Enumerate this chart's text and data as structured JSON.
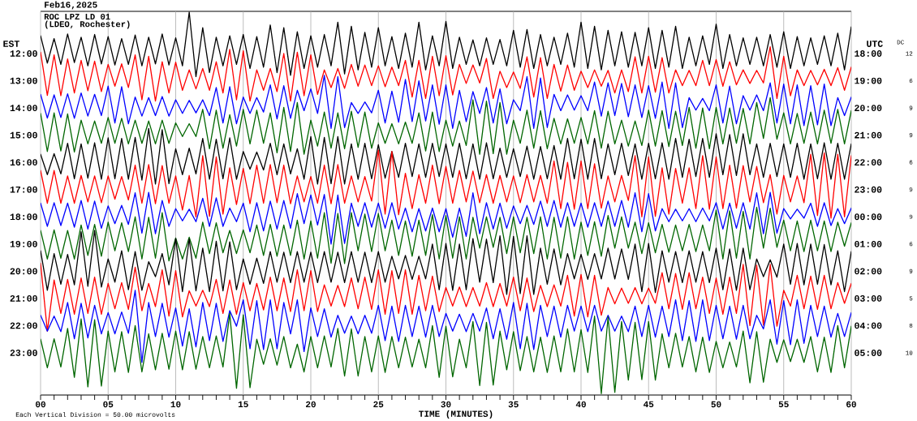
{
  "chart_data": {
    "type": "line",
    "title": "Feb16,2025",
    "subtitle": "ROC LPZ LD 01",
    "annotations": [
      "(LDEO, Rochester)",
      "Each Vertical Division = 50.00 microvolts",
      "DC",
      "12",
      "6",
      "9",
      "9",
      "6",
      "9",
      "9",
      "6",
      "9",
      "5",
      "8",
      "10"
    ],
    "xlabel": "TIME (MINUTES)",
    "ylabel": "EST",
    "y2label": "UTC",
    "x": [
      0,
      0.5,
      1,
      1.5,
      2,
      2.5,
      3,
      3.5,
      4,
      4.5,
      5,
      5.5,
      6,
      6.5,
      7,
      7.5,
      8,
      8.5,
      9,
      9.5,
      10,
      10.5,
      11,
      11.5,
      12,
      12.5,
      13,
      13.5,
      14,
      14.5,
      15,
      15.5,
      16,
      16.5,
      17,
      17.5,
      18,
      18.5,
      19,
      19.5,
      20,
      20.5,
      21,
      21.5,
      22,
      22.5,
      23,
      23.5,
      24,
      24.5,
      25,
      25.5,
      26,
      26.5,
      27,
      27.5,
      28,
      28.5,
      29,
      29.5,
      30,
      30.5,
      31,
      31.5,
      32,
      32.5,
      33,
      33.5,
      34,
      34.5,
      35,
      35.5,
      36,
      36.5,
      37,
      37.5,
      38,
      38.5,
      39,
      39.5,
      40,
      40.5,
      41,
      41.5,
      42,
      42.5,
      43,
      43.5,
      44,
      44.5,
      45,
      45.5,
      46,
      46.5,
      47,
      47.5,
      48,
      48.5,
      49,
      49.5,
      50,
      50.5,
      51,
      51.5,
      52,
      52.5,
      53,
      53.5,
      54,
      54.5,
      55,
      55.5,
      56,
      56.5,
      57,
      57.5,
      58,
      58.5,
      59,
      59.5,
      60
    ],
    "series": [
      {
        "color": "#000000",
        "values": [
          11.35,
          12.35,
          11.45,
          12.4,
          11.28,
          12.33,
          11.4,
          12.45,
          11.3,
          12.38,
          11.38,
          12.42,
          11.45,
          12.4,
          11.32,
          12.45,
          11.4,
          12.38,
          11.28,
          12.42,
          11.42,
          12.45,
          10.48,
          12.85,
          11.05,
          12.7,
          11.4,
          12.45,
          11.35,
          12.4,
          11.3,
          12.55,
          11.38,
          12.5,
          10.95,
          12.7,
          11.05,
          12.8,
          11.2,
          12.55,
          11.35,
          12.5,
          11.3,
          12.45,
          10.85,
          12.75,
          11.0,
          12.6,
          11.22,
          12.5,
          11.05,
          12.45,
          11.38,
          12.55,
          11.25,
          12.5,
          10.85,
          12.6,
          11.35,
          12.45,
          10.82,
          12.55,
          11.4,
          12.4,
          11.5,
          12.45,
          11.42,
          12.4,
          11.48,
          12.45,
          11.15,
          12.5,
          11.12,
          12.55,
          11.3,
          12.45,
          11.4,
          12.4,
          11.25,
          12.5,
          10.85,
          12.55,
          11.0,
          12.6,
          11.15,
          12.45,
          11.2,
          12.5,
          11.22,
          12.45,
          11.05,
          12.55,
          11.15,
          12.5,
          11.0,
          12.55,
          11.4,
          12.45,
          11.35,
          12.4,
          10.92,
          12.55,
          11.3,
          12.45,
          11.42,
          12.4,
          11.4,
          12.45,
          11.3,
          12.5,
          11.2,
          12.55,
          11.38,
          12.45,
          11.42,
          12.4,
          11.35,
          12.45,
          11.25,
          12.6,
          11.02
        ]
      },
      {
        "color": "#ff0000",
        "values": [
          11.95,
          13.54,
          12.05,
          13.55,
          12.2,
          13.45,
          12.25,
          13.37,
          12.28,
          13.4,
          12.4,
          13.2,
          12.38,
          13.25,
          12.05,
          13.7,
          12.1,
          13.75,
          12.3,
          13.45,
          12.32,
          13.35,
          12.6,
          13.3,
          12.55,
          13.35,
          12.3,
          13.45,
          11.85,
          13.7,
          11.9,
          13.75,
          12.6,
          13.35,
          12.55,
          13.4,
          12.0,
          13.75,
          11.95,
          13.55,
          12.05,
          13.5,
          12.6,
          13.25,
          12.55,
          13.28,
          12.4,
          13.2,
          12.42,
          13.18,
          12.45,
          13.22,
          12.5,
          13.18,
          12.25,
          13.6,
          12.25,
          13.65,
          12.1,
          13.55,
          12.08,
          13.52,
          12.4,
          13.1,
          12.42,
          13.08,
          12.18,
          13.65,
          12.65,
          13.25,
          12.68,
          13.28,
          12.12,
          13.6,
          12.15,
          13.65,
          12.4,
          13.38,
          12.42,
          13.35,
          12.65,
          13.25,
          12.6,
          13.2,
          12.62,
          13.45,
          12.6,
          13.4,
          12.12,
          13.45,
          12.1,
          13.42,
          12.15,
          13.45,
          12.6,
          13.18,
          12.62,
          13.18,
          12.25,
          13.18,
          12.22,
          13.2,
          12.3,
          13.15,
          12.6,
          13.1,
          12.62,
          13.08,
          11.75,
          13.65,
          12.1,
          13.55,
          12.6,
          13.18,
          12.62,
          13.15,
          12.58,
          13.18,
          12.52,
          13.35,
          12.5
        ]
      },
      {
        "color": "#0000ff",
        "values": [
          13.5,
          14.37,
          13.52,
          14.35,
          13.48,
          14.38,
          13.45,
          14.3,
          13.5,
          14.28,
          13.2,
          14.55,
          13.22,
          14.58,
          13.6,
          14.3,
          13.62,
          14.28,
          13.58,
          14.3,
          13.7,
          14.2,
          13.72,
          14.18,
          13.7,
          14.28,
          13.25,
          14.55,
          13.22,
          14.58,
          13.6,
          14.2,
          13.62,
          14.15,
          13.15,
          14.4,
          13.18,
          14.38,
          13.35,
          14.1,
          13.3,
          14.2,
          12.8,
          14.75,
          12.85,
          14.72,
          13.8,
          14.2,
          13.78,
          14.18,
          13.35,
          14.55,
          13.38,
          14.52,
          12.95,
          14.5,
          13.0,
          14.48,
          13.15,
          14.6,
          13.15,
          14.75,
          13.35,
          14.5,
          13.4,
          14.2,
          13.25,
          14.55,
          13.3,
          14.58,
          13.7,
          14.1,
          12.85,
          14.75,
          12.9,
          14.72,
          13.5,
          14.1,
          13.52,
          14.08,
          13.55,
          14.1,
          13.05,
          14.3,
          13.08,
          14.28,
          13.1,
          14.32,
          13.15,
          14.35,
          13.18,
          14.38,
          13.05,
          14.75,
          13.08,
          14.72,
          13.62,
          14.08,
          13.65,
          14.1,
          13.15,
          14.55,
          13.2,
          14.58,
          13.55,
          14.08,
          13.52,
          14.1,
          13.08,
          14.55,
          13.12,
          14.58,
          13.15,
          14.65,
          13.18,
          14.62,
          13.12,
          14.65,
          13.62,
          14.28,
          13.6
        ]
      },
      {
        "color": "#006600",
        "values": [
          14.2,
          15.6,
          14.18,
          15.58,
          14.22,
          15.62,
          14.45,
          15.32,
          14.48,
          15.3,
          14.35,
          15.3,
          14.38,
          15.32,
          14.45,
          15.3,
          14.48,
          15.32,
          14.45,
          15.3,
          14.55,
          15.05,
          14.58,
          15.05,
          14.05,
          15.5,
          14.08,
          15.48,
          14.25,
          15.4,
          14.05,
          15.32,
          14.08,
          15.3,
          14.18,
          15.65,
          13.98,
          15.6,
          13.8,
          15.7,
          14.45,
          15.4,
          14.15,
          15.48,
          14.18,
          15.5,
          14.12,
          15.45,
          14.15,
          15.48,
          14.55,
          15.3,
          14.58,
          15.32,
          14.52,
          15.3,
          14.18,
          15.58,
          14.15,
          15.6,
          14.45,
          15.4,
          14.48,
          15.38,
          13.7,
          15.7,
          13.75,
          15.68,
          13.8,
          15.7,
          14.45,
          15.3,
          14.08,
          15.48,
          14.1,
          15.5,
          14.38,
          15.32,
          14.4,
          15.3,
          14.35,
          15.32,
          14.1,
          15.48,
          14.12,
          15.32,
          14.45,
          15.4,
          14.48,
          15.38,
          14.08,
          15.4,
          14.1,
          15.42,
          14.12,
          15.38,
          13.98,
          15.48,
          14.0,
          15.5,
          13.98,
          15.32,
          14.0,
          15.3,
          14.02,
          15.32,
          13.8,
          15.12,
          13.62,
          15.15,
          14.18,
          15.32,
          14.2,
          15.3,
          14.15,
          15.32,
          14.08,
          15.3,
          14.05,
          15.32,
          14.1
        ]
      },
      {
        "color": "#000000",
        "values": [
          15.7,
          16.45,
          15.68,
          16.42,
          15.3,
          16.6,
          15.32,
          16.58,
          15.28,
          16.62,
          15.1,
          16.6,
          15.12,
          16.62,
          15.08,
          16.65,
          14.75,
          16.8,
          14.8,
          16.78,
          15.5,
          16.45,
          15.48,
          16.42,
          15.12,
          16.62,
          15.15,
          16.6,
          15.1,
          16.62,
          15.6,
          16.25,
          15.62,
          16.28,
          15.3,
          16.45,
          15.32,
          16.42,
          15.5,
          16.62,
          15.05,
          16.8,
          15.08,
          16.78,
          15.05,
          16.8,
          15.32,
          16.62,
          15.3,
          16.6,
          15.35,
          16.58,
          15.6,
          16.55,
          15.3,
          16.52,
          15.32,
          16.55,
          15.3,
          16.52,
          15.32,
          16.55,
          15.3,
          16.6,
          15.32,
          16.62,
          15.28,
          16.6,
          15.48,
          16.55,
          15.5,
          16.52,
          15.4,
          16.62,
          15.42,
          16.6,
          15.38,
          16.62,
          15.12,
          16.6,
          15.15,
          16.62,
          15.12,
          16.6,
          15.32,
          16.45,
          15.3,
          16.48,
          15.32,
          16.62,
          15.3,
          16.6,
          15.28,
          16.62,
          15.12,
          16.55,
          15.15,
          16.52,
          15.12,
          16.55,
          14.95,
          16.45,
          14.98,
          16.48,
          14.95,
          16.45,
          15.32,
          16.55,
          15.3,
          16.52,
          15.32,
          16.55,
          15.3,
          16.62,
          15.32,
          16.6,
          15.28,
          16.62,
          15.3,
          16.62,
          15.32
        ]
      },
      {
        "color": "#ff0000",
        "values": [
          16.3,
          17.5,
          16.3,
          17.5,
          16.5,
          17.5,
          16.48,
          17.45,
          16.5,
          17.48,
          16.5,
          17.35,
          16.52,
          17.38,
          16.1,
          17.5,
          16.08,
          17.52,
          16.12,
          17.5,
          16.5,
          17.75,
          16.48,
          18.0,
          15.75,
          17.98,
          15.8,
          17.9,
          16.2,
          17.55,
          16.22,
          17.52,
          16.1,
          17.5,
          16.08,
          17.48,
          16.1,
          17.52,
          16.5,
          17.45,
          16.52,
          17.5,
          16.1,
          17.52,
          16.08,
          17.5,
          16.5,
          17.45,
          16.52,
          17.42,
          15.55,
          17.9,
          15.6,
          17.92,
          16.4,
          17.7,
          16.45,
          17.5,
          16.1,
          17.52,
          16.15,
          17.5,
          16.3,
          17.45,
          16.32,
          17.48,
          16.45,
          17.5,
          16.48,
          17.45,
          16.5,
          17.48,
          16.45,
          17.45,
          16.48,
          17.5,
          15.95,
          17.7,
          16.0,
          17.72,
          15.95,
          17.7,
          16.05,
          17.68,
          16.5,
          17.45,
          16.48,
          17.4,
          15.75,
          18.0,
          15.8,
          17.98,
          16.2,
          17.9,
          16.22,
          17.5,
          16.2,
          17.7,
          15.75,
          17.72,
          15.8,
          17.7,
          16.1,
          17.68,
          16.12,
          17.45,
          16.15,
          17.48,
          16.45,
          17.9,
          16.48,
          17.45,
          16.5,
          17.48,
          15.7,
          17.95,
          15.65,
          18.05,
          15.7,
          18.0,
          15.75
        ]
      },
      {
        "color": "#0000ff",
        "values": [
          17.5,
          18.35,
          17.48,
          18.32,
          17.5,
          18.38,
          17.4,
          18.45,
          17.42,
          18.42,
          17.6,
          18.25,
          17.58,
          18.28,
          17.12,
          18.6,
          17.1,
          18.62,
          17.4,
          18.35,
          17.7,
          18.15,
          17.72,
          18.18,
          17.32,
          18.35,
          17.3,
          18.35,
          17.68,
          18.18,
          17.5,
          18.55,
          17.48,
          18.52,
          17.42,
          18.45,
          17.4,
          18.42,
          17.15,
          18.25,
          17.2,
          18.3,
          17.18,
          19.0,
          17.2,
          18.98,
          17.5,
          18.35,
          17.48,
          18.38,
          17.5,
          18.42,
          17.48,
          18.45,
          17.68,
          18.55,
          17.7,
          18.52,
          17.68,
          18.55,
          17.7,
          18.75,
          17.68,
          18.72,
          17.12,
          18.62,
          17.48,
          18.45,
          17.5,
          18.42,
          17.6,
          18.25,
          17.58,
          18.28,
          17.42,
          18.35,
          17.4,
          18.38,
          17.48,
          18.35,
          17.5,
          18.38,
          17.48,
          18.35,
          17.42,
          18.35,
          17.4,
          18.38,
          17.12,
          18.55,
          17.15,
          18.52,
          17.7,
          18.18,
          17.72,
          18.15,
          17.7,
          18.18,
          17.68,
          18.15,
          17.48,
          18.45,
          17.5,
          18.42,
          17.48,
          18.45,
          17.12,
          18.62,
          17.1,
          18.6,
          17.7,
          18.08,
          17.72,
          18.05,
          17.5,
          18.35,
          17.48,
          18.32,
          17.7,
          18.25,
          17.68
        ]
      },
      {
        "color": "#006600",
        "values": [
          18.5,
          19.55,
          18.48,
          19.52,
          18.5,
          19.55,
          18.3,
          19.42,
          18.28,
          19.45,
          18.2,
          19.25,
          18.22,
          19.28,
          18.0,
          19.55,
          18.02,
          19.52,
          17.85,
          19.62,
          18.78,
          19.55,
          18.75,
          19.52,
          18.2,
          19.35,
          18.22,
          19.32,
          18.5,
          19.35,
          18.48,
          19.32,
          18.3,
          19.42,
          18.28,
          19.45,
          18.3,
          19.42,
          18.12,
          19.55,
          18.15,
          19.52,
          17.85,
          19.7,
          17.88,
          19.72,
          17.85,
          19.25,
          17.9,
          19.28,
          17.88,
          19.25,
          18.12,
          19.42,
          18.15,
          19.45,
          18.12,
          19.42,
          17.92,
          19.55,
          17.95,
          19.52,
          18.0,
          19.55,
          18.02,
          19.15,
          18.0,
          19.12,
          18.02,
          19.35,
          18.0,
          19.32,
          18.02,
          19.35,
          18.0,
          19.55,
          18.02,
          19.52,
          18.0,
          19.55,
          18.2,
          19.42,
          18.18,
          19.45,
          17.95,
          19.15,
          18.0,
          19.15,
          18.2,
          19.35,
          18.22,
          19.32,
          18.28,
          19.3,
          18.3,
          19.25,
          18.28,
          19.28,
          18.3,
          19.25,
          17.75,
          19.55,
          17.78,
          19.52,
          17.8,
          19.55,
          17.65,
          19.15,
          17.68,
          19.12,
          18.12,
          19.25,
          18.15,
          19.28,
          18.12,
          19.25,
          18.15,
          19.28,
          18.2,
          19.08,
          18.22
        ]
      },
      {
        "color": "#000000",
        "values": [
          19.25,
          20.7,
          19.35,
          20.48,
          19.38,
          20.5,
          18.55,
          20.55,
          18.5,
          20.58,
          19.55,
          20.4,
          19.25,
          20.68,
          19.28,
          20.7,
          19.65,
          20.2,
          19.35,
          20.5,
          18.8,
          20.75,
          18.82,
          20.72,
          19.15,
          20.75,
          18.9,
          20.72,
          18.92,
          20.68,
          19.55,
          20.48,
          19.52,
          20.45,
          19.28,
          20.4,
          19.3,
          20.42,
          19.28,
          20.4,
          19.3,
          20.42,
          19.28,
          20.4,
          19.3,
          20.42,
          19.28,
          20.4,
          19.3,
          20.42,
          19.28,
          20.4,
          19.45,
          20.28,
          19.42,
          20.3,
          19.45,
          20.28,
          19.0,
          20.68,
          18.98,
          20.7,
          19.0,
          20.68,
          18.8,
          20.4,
          18.82,
          20.42,
          18.7,
          20.85,
          18.72,
          20.82,
          18.7,
          20.85,
          19.15,
          20.48,
          19.18,
          20.5,
          19.35,
          20.28,
          19.38,
          20.3,
          19.35,
          20.28,
          19.15,
          20.28,
          19.18,
          20.3,
          19.0,
          20.75,
          18.98,
          20.78,
          19.25,
          20.4,
          19.28,
          20.42,
          19.25,
          20.4,
          19.28,
          20.42,
          19.15,
          20.68,
          19.18,
          20.7,
          19.15,
          20.68,
          19.55,
          20.2,
          19.58,
          20.22,
          19.0,
          20.48,
          18.98,
          20.5,
          19.0,
          20.48,
          19.02,
          20.5,
          19.25,
          20.75,
          19.28
        ]
      },
      {
        "color": "#ff0000",
        "values": [
          19.7,
          22.2,
          20.32,
          21.55,
          20.3,
          21.58,
          20.25,
          21.55,
          20.22,
          21.58,
          20.45,
          21.38,
          20.42,
          21.4,
          19.85,
          21.45,
          20.45,
          21.3,
          19.95,
          21.65,
          19.98,
          21.68,
          20.72,
          21.28,
          20.7,
          21.3,
          20.3,
          21.55,
          20.32,
          21.58,
          20.42,
          21.45,
          20.45,
          21.42,
          20.22,
          21.45,
          20.25,
          21.48,
          19.95,
          21.45,
          19.98,
          21.48,
          20.5,
          21.28,
          20.52,
          21.3,
          20.25,
          21.38,
          20.22,
          21.4,
          19.95,
          21.58,
          19.98,
          21.55,
          19.95,
          21.58,
          20.15,
          21.45,
          20.18,
          21.48,
          20.6,
          21.28,
          20.58,
          21.3,
          20.6,
          21.28,
          20.42,
          21.3,
          20.45,
          21.28,
          20.22,
          21.45,
          20.25,
          21.48,
          20.52,
          21.3,
          20.5,
          21.28,
          20.15,
          21.65,
          20.12,
          21.68,
          20.15,
          21.62,
          20.6,
          21.2,
          20.62,
          21.18,
          20.6,
          21.2,
          20.62,
          21.18,
          20.05,
          21.38,
          20.08,
          21.4,
          20.05,
          21.38,
          20.22,
          21.55,
          20.25,
          21.58,
          20.22,
          21.55,
          19.75,
          22.0,
          19.78,
          21.98,
          19.75,
          22.02,
          20.7,
          21.28,
          20.15,
          21.38,
          20.18,
          21.4,
          20.15,
          21.38,
          20.42,
          21.18,
          20.45
        ]
      },
      {
        "color": "#0000ff",
        "values": [
          21.62,
          22.2,
          21.65,
          22.22,
          21.15,
          22.48,
          21.18,
          22.45,
          21.25,
          22.3,
          21.52,
          22.3,
          21.5,
          22.28,
          20.7,
          23.35,
          21.15,
          22.4,
          21.18,
          22.42,
          21.35,
          22.75,
          21.38,
          22.78,
          21.15,
          22.55,
          21.18,
          22.58,
          21.45,
          22.02,
          21.05,
          22.85,
          21.08,
          22.88,
          21.05,
          22.85,
          21.15,
          22.3,
          21.05,
          22.95,
          21.35,
          22.4,
          21.38,
          22.42,
          21.62,
          22.28,
          21.65,
          22.3,
          21.62,
          22.28,
          21.25,
          22.55,
          21.28,
          22.58,
          21.25,
          22.4,
          21.28,
          22.42,
          21.25,
          22.4,
          21.55,
          22.2,
          21.58,
          22.22,
          21.55,
          22.2,
          21.35,
          22.48,
          21.38,
          22.5,
          21.15,
          22.85,
          21.18,
          22.88,
          21.25,
          22.4,
          21.28,
          22.42,
          21.25,
          22.2,
          21.28,
          22.22,
          21.25,
          22.2,
          21.62,
          22.2,
          21.65,
          22.22,
          21.28,
          22.4,
          21.25,
          22.42,
          21.28,
          22.4,
          21.05,
          22.55,
          21.08,
          22.58,
          21.05,
          22.55,
          21.25,
          22.48,
          21.28,
          22.5,
          21.25,
          22.48,
          21.62,
          22.12,
          21.05,
          22.68,
          21.08,
          22.7,
          21.05,
          22.65,
          21.25,
          22.4,
          21.28,
          22.42,
          21.55,
          22.4,
          21.52
        ]
      },
      {
        "color": "#006600",
        "values": [
          22.5,
          23.55,
          22.48,
          23.52,
          22.1,
          23.9,
          21.75,
          24.25,
          21.78,
          24.22,
          22.2,
          23.7,
          22.22,
          23.72,
          22.0,
          23.7,
          22.3,
          23.62,
          22.28,
          23.6,
          22.2,
          23.62,
          22.22,
          23.6,
          22.4,
          23.55,
          22.38,
          23.52,
          21.55,
          24.3,
          21.6,
          24.28,
          22.5,
          23.42,
          22.48,
          23.45,
          22.4,
          23.55,
          22.68,
          23.7,
          22.4,
          23.55,
          22.38,
          23.52,
          22.1,
          23.85,
          22.12,
          23.85,
          22.4,
          23.7,
          22.38,
          23.72,
          22.4,
          23.55,
          22.42,
          23.52,
          22.5,
          23.55,
          22.0,
          23.9,
          22.02,
          23.88,
          22.5,
          23.55,
          21.85,
          24.2,
          21.88,
          24.18,
          22.2,
          23.62,
          22.22,
          23.65,
          22.4,
          23.7,
          22.42,
          23.72,
          22.38,
          23.7,
          22.12,
          23.7,
          22.15,
          23.72,
          21.65,
          24.5,
          21.68,
          24.45,
          21.85,
          24.0,
          21.88,
          23.98,
          21.85,
          24.0,
          22.3,
          23.55,
          22.28,
          23.52,
          22.4,
          23.7,
          22.42,
          23.72,
          22.58,
          23.55,
          22.6,
          23.52,
          22.2,
          24.1,
          22.22,
          24.08,
          22.5,
          23.35,
          22.52,
          23.32,
          22.5,
          23.35,
          22.4,
          23.7,
          22.42,
          23.72,
          22.0,
          23.55,
          22.02
        ]
      }
    ],
    "xlim": [
      0,
      60
    ],
    "xticks": [
      {
        "value": 0,
        "label": "00"
      },
      {
        "value": 1,
        "label": null
      },
      {
        "value": 2,
        "label": null
      },
      {
        "value": 3,
        "label": null
      },
      {
        "value": 4,
        "label": null
      },
      {
        "value": 5,
        "label": "05"
      },
      {
        "value": 6,
        "label": null
      },
      {
        "value": 7,
        "label": null
      },
      {
        "value": 8,
        "label": null
      },
      {
        "value": 9,
        "label": null
      },
      10,
      {
        "value": 11,
        "label": null
      },
      {
        "value": 12,
        "label": null
      },
      {
        "value": 13,
        "label": null
      },
      {
        "value": 14,
        "label": null
      },
      15,
      {
        "value": 16,
        "label": null
      },
      {
        "value": 17,
        "label": null
      },
      {
        "value": 18,
        "label": null
      },
      {
        "value": 19,
        "label": null
      },
      20,
      {
        "value": 21,
        "label": null
      },
      {
        "value": 22,
        "label": null
      },
      {
        "value": 23,
        "label": null
      },
      {
        "value": 24,
        "label": null
      },
      25,
      {
        "value": 26,
        "label": null
      },
      {
        "value": 27,
        "label": null
      },
      {
        "value": 28,
        "label": null
      },
      {
        "value": 29,
        "label": null
      },
      30,
      {
        "value": 31,
        "label": null
      },
      {
        "value": 32,
        "label": null
      },
      {
        "value": 33,
        "label": null
      },
      {
        "value": 34,
        "label": null
      },
      35,
      {
        "value": 36,
        "label": null
      },
      {
        "value": 37,
        "label": null
      },
      {
        "value": 38,
        "label": null
      },
      {
        "value": 39,
        "label": null
      },
      40,
      {
        "value": 41,
        "label": null
      },
      {
        "value": 42,
        "label": null
      },
      {
        "value": 43,
        "label": null
      },
      {
        "value": 44,
        "label": null
      },
      45,
      {
        "value": 46,
        "label": null
      },
      {
        "value": 47,
        "label": null
      },
      {
        "value": 48,
        "label": null
      },
      {
        "value": 49,
        "label": null
      },
      50,
      {
        "value": 51,
        "label": null
      },
      {
        "value": 52,
        "label": null
      },
      {
        "value": 53,
        "label": null
      },
      {
        "value": 54,
        "label": null
      },
      55,
      {
        "value": 56,
        "label": null
      },
      {
        "value": 57,
        "label": null
      },
      {
        "value": 58,
        "label": null
      },
      {
        "value": 59,
        "label": null
      },
      60
    ],
    "ylim": [
      24.55,
      10.45
    ],
    "yticks": [
      {
        "value": 12,
        "label": "12:00"
      },
      {
        "value": 13,
        "label": "13:00"
      },
      {
        "value": 14,
        "label": "14:00"
      },
      {
        "value": 15,
        "label": "15:00"
      },
      {
        "value": 16,
        "label": "16:00"
      },
      {
        "value": 17,
        "label": "17:00"
      },
      {
        "value": 18,
        "label": "18:00"
      },
      {
        "value": 19,
        "label": "19:00"
      },
      {
        "value": 20,
        "label": "20:00"
      },
      {
        "value": 21,
        "label": "21:00"
      },
      {
        "value": 22,
        "label": "22:00"
      },
      {
        "value": 23,
        "label": "23:00"
      }
    ],
    "y2_categories": [
      "18:00",
      "19:00",
      "20:00",
      "21:00",
      "22:00",
      "23:00",
      "00:00",
      "01:00",
      "02:00",
      "03:00",
      "04:00",
      "05:00"
    ],
    "grid": "x",
    "marker": "none",
    "line_style": "solid"
  }
}
